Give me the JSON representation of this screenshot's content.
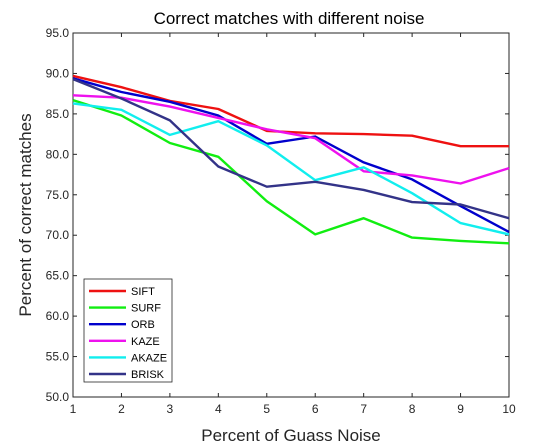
{
  "chart_data": {
    "type": "line",
    "title": "Correct matches with different noise",
    "xlabel": "Percent of Guass Noise",
    "ylabel": "Percent of correct matches",
    "xlim": [
      1,
      10
    ],
    "ylim": [
      50,
      95
    ],
    "x": [
      1,
      2,
      3,
      4,
      5,
      6,
      7,
      8,
      9,
      10
    ],
    "xticks": [
      "1",
      "2",
      "3",
      "4",
      "5",
      "6",
      "7",
      "8",
      "9",
      "10"
    ],
    "yticks": [
      "50.0",
      "55.0",
      "60.0",
      "65.0",
      "70.0",
      "75.0",
      "80.0",
      "85.0",
      "90.0",
      "95.0"
    ],
    "ytick_values": [
      50,
      55,
      60,
      65,
      70,
      75,
      80,
      85,
      90,
      95
    ],
    "grid": false,
    "legend_position": "bottom-left",
    "series": [
      {
        "name": "SIFT",
        "color": "#ee1111",
        "values": [
          89.7,
          88.3,
          86.6,
          85.6,
          82.9,
          82.6,
          82.5,
          82.3,
          81.0,
          81.0
        ]
      },
      {
        "name": "SURF",
        "color": "#11ee11",
        "values": [
          86.7,
          84.8,
          81.4,
          79.7,
          74.2,
          70.1,
          72.1,
          69.7,
          69.3,
          69.0
        ]
      },
      {
        "name": "ORB",
        "color": "#0000cc",
        "values": [
          89.4,
          87.7,
          86.5,
          84.8,
          81.3,
          82.2,
          79.0,
          76.9,
          73.6,
          70.4
        ]
      },
      {
        "name": "KAZE",
        "color": "#ee11ee",
        "values": [
          87.3,
          87.0,
          85.9,
          84.5,
          83.1,
          82.0,
          77.9,
          77.4,
          76.4,
          78.3
        ]
      },
      {
        "name": "AKAZE",
        "color": "#11eeee",
        "values": [
          86.3,
          85.5,
          82.4,
          84.1,
          81.1,
          76.8,
          78.4,
          75.2,
          71.5,
          70.1
        ]
      },
      {
        "name": "BRISK",
        "color": "#333388",
        "values": [
          89.3,
          86.9,
          84.2,
          78.5,
          76.0,
          76.6,
          75.6,
          74.1,
          73.8,
          72.1
        ]
      }
    ]
  }
}
